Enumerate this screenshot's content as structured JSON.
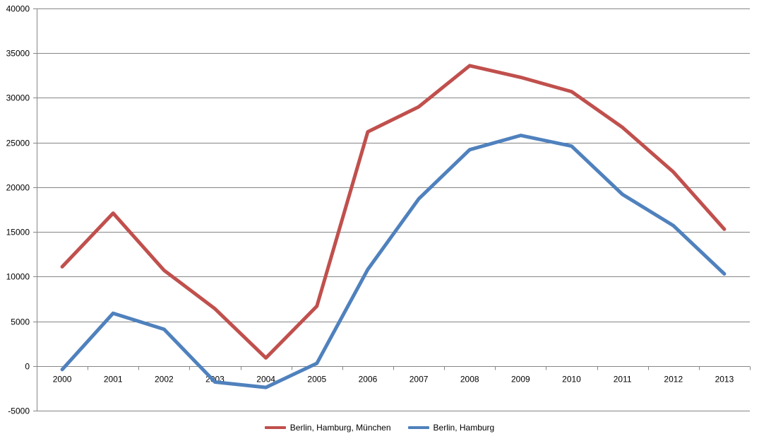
{
  "chart_data": {
    "type": "line",
    "title": "",
    "xlabel": "",
    "ylabel": "",
    "categories": [
      "2000",
      "2001",
      "2002",
      "2003",
      "2004",
      "2005",
      "2006",
      "2007",
      "2008",
      "2009",
      "2010",
      "2011",
      "2012",
      "2013"
    ],
    "ylim": [
      -5000,
      40000
    ],
    "yticks": [
      -5000,
      0,
      5000,
      10000,
      15000,
      20000,
      25000,
      30000,
      35000,
      40000
    ],
    "grid": true,
    "legend_position": "bottom",
    "series": [
      {
        "name": "Berlin, Hamburg,  München",
        "color": "#c0504d",
        "values": [
          11100,
          17100,
          10700,
          6400,
          900,
          6700,
          26200,
          29000,
          33600,
          32300,
          30700,
          26700,
          21700,
          15300
        ]
      },
      {
        "name": "Berlin, Hamburg",
        "color": "#4f81bd",
        "values": [
          -400,
          5900,
          4100,
          -1800,
          -2400,
          300,
          10800,
          18700,
          24200,
          25800,
          24600,
          19200,
          15700,
          10300
        ]
      }
    ]
  }
}
